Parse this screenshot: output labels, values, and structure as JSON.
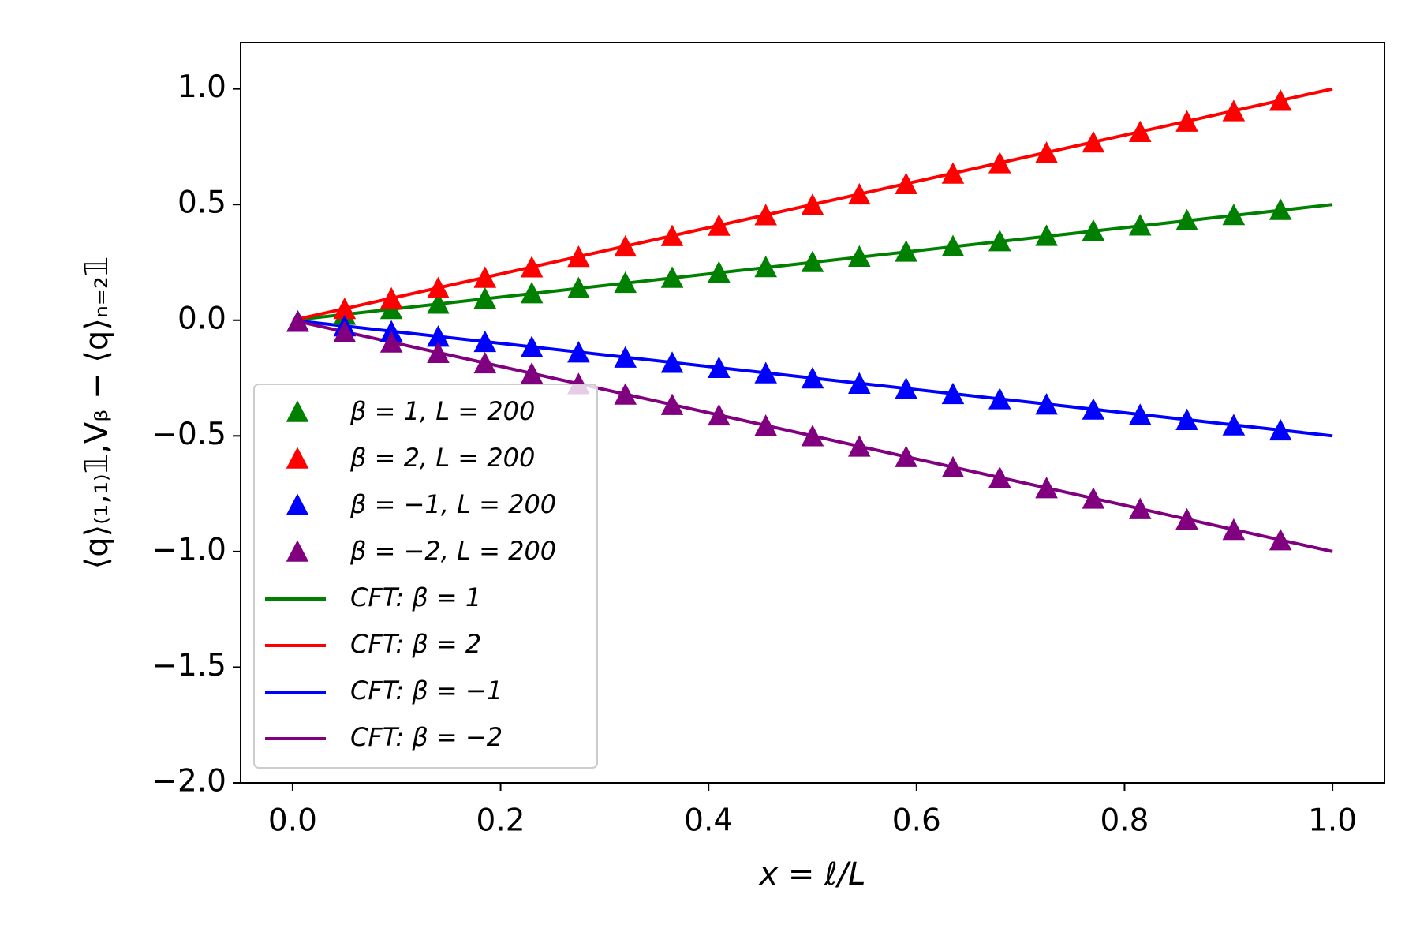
{
  "chart_data": {
    "type": "line",
    "xlabel": "x = ℓ/L",
    "ylabel": "⟨q⟩₍₁,₁₎𝟙,Vᵦ − ⟨q⟩ₙ₌₂𝟙",
    "xlim": [
      -0.05,
      1.05
    ],
    "ylim": [
      -2.0,
      1.2
    ],
    "xticks": [
      {
        "value": 0,
        "label": "0.0"
      },
      {
        "value": 0.2,
        "label": "0.2"
      },
      {
        "value": 0.4,
        "label": "0.4"
      },
      {
        "value": 0.6,
        "label": "0.6"
      },
      {
        "value": 0.8,
        "label": "0.8"
      },
      {
        "value": 1,
        "label": "1.0"
      }
    ],
    "yticks": [
      {
        "value": -2,
        "label": "−2.0"
      },
      {
        "value": -1.5,
        "label": "−1.5"
      },
      {
        "value": -1,
        "label": "−1.0"
      },
      {
        "value": -0.5,
        "label": "−0.5"
      },
      {
        "value": 0,
        "label": "0.0"
      },
      {
        "value": 0.5,
        "label": "0.5"
      },
      {
        "value": 1,
        "label": "1.0"
      }
    ],
    "legend": "lower left",
    "series": [
      {
        "name": "β = 1, L = 200",
        "type": "scatter",
        "marker": "triangle",
        "color": "#008000",
        "x": [
          0.005,
          0.05,
          0.095,
          0.14,
          0.185,
          0.23,
          0.275,
          0.32,
          0.365,
          0.41,
          0.455,
          0.5,
          0.545,
          0.59,
          0.635,
          0.68,
          0.725,
          0.77,
          0.815,
          0.86,
          0.905,
          0.95
        ],
        "values": [
          -0.01,
          0.02,
          0.045,
          0.068,
          0.09,
          0.113,
          0.135,
          0.158,
          0.18,
          0.203,
          0.226,
          0.248,
          0.271,
          0.293,
          0.316,
          0.338,
          0.361,
          0.383,
          0.406,
          0.428,
          0.451,
          0.473
        ]
      },
      {
        "name": "β = 2, L = 200",
        "type": "scatter",
        "marker": "triangle",
        "color": "#ff0000",
        "x": [
          0.005,
          0.05,
          0.095,
          0.14,
          0.185,
          0.23,
          0.275,
          0.32,
          0.365,
          0.41,
          0.455,
          0.5,
          0.545,
          0.59,
          0.635,
          0.68,
          0.725,
          0.77,
          0.815,
          0.86,
          0.905,
          0.95
        ],
        "values": [
          -0.01,
          0.045,
          0.09,
          0.135,
          0.18,
          0.225,
          0.27,
          0.315,
          0.36,
          0.405,
          0.45,
          0.495,
          0.54,
          0.585,
          0.63,
          0.675,
          0.72,
          0.765,
          0.81,
          0.855,
          0.9,
          0.945
        ]
      },
      {
        "name": "β = −1, L = 200",
        "type": "scatter",
        "marker": "triangle",
        "color": "#0000ff",
        "x": [
          0.005,
          0.05,
          0.095,
          0.14,
          0.185,
          0.23,
          0.275,
          0.32,
          0.365,
          0.41,
          0.455,
          0.5,
          0.545,
          0.59,
          0.635,
          0.68,
          0.725,
          0.77,
          0.815,
          0.86,
          0.905,
          0.95
        ],
        "values": [
          -0.01,
          -0.03,
          -0.053,
          -0.075,
          -0.098,
          -0.12,
          -0.143,
          -0.165,
          -0.188,
          -0.21,
          -0.233,
          -0.255,
          -0.278,
          -0.3,
          -0.323,
          -0.345,
          -0.368,
          -0.39,
          -0.413,
          -0.435,
          -0.458,
          -0.48
        ]
      },
      {
        "name": "β = −2, L = 200",
        "type": "scatter",
        "marker": "triangle",
        "color": "#800080",
        "x": [
          0.005,
          0.05,
          0.095,
          0.14,
          0.185,
          0.23,
          0.275,
          0.32,
          0.365,
          0.41,
          0.455,
          0.5,
          0.545,
          0.59,
          0.635,
          0.68,
          0.725,
          0.77,
          0.815,
          0.86,
          0.905,
          0.95
        ],
        "values": [
          -0.01,
          -0.055,
          -0.1,
          -0.145,
          -0.19,
          -0.235,
          -0.28,
          -0.325,
          -0.37,
          -0.415,
          -0.46,
          -0.505,
          -0.55,
          -0.595,
          -0.64,
          -0.685,
          -0.73,
          -0.775,
          -0.82,
          -0.865,
          -0.91,
          -0.955
        ]
      },
      {
        "name": "CFT: β = 1",
        "type": "line",
        "color": "#008000",
        "x": [
          0,
          1
        ],
        "values": [
          0,
          0.5
        ]
      },
      {
        "name": "CFT: β = 2",
        "type": "line",
        "color": "#ff0000",
        "x": [
          0,
          1
        ],
        "values": [
          0,
          1
        ]
      },
      {
        "name": "CFT: β = −1",
        "type": "line",
        "color": "#0000ff",
        "x": [
          0,
          1
        ],
        "values": [
          0,
          -0.5
        ]
      },
      {
        "name": "CFT: β = −2",
        "type": "line",
        "color": "#800080",
        "x": [
          0,
          1
        ],
        "values": [
          0,
          -1
        ]
      }
    ]
  }
}
